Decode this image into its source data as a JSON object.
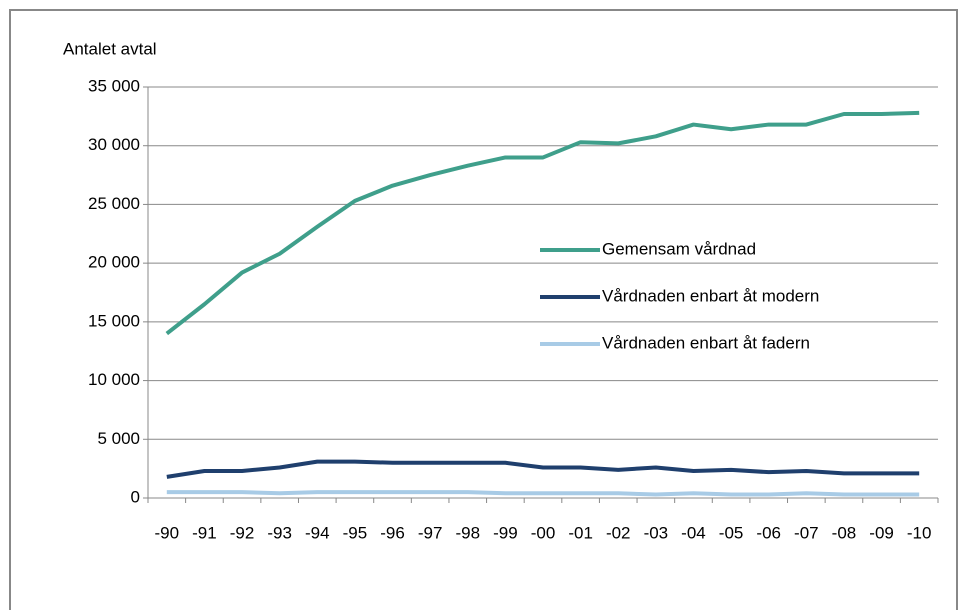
{
  "chart_data": {
    "type": "line",
    "ylabel": "Antalet avtal",
    "categories": [
      "-90",
      "-91",
      "-92",
      "-93",
      "-94",
      "-95",
      "-96",
      "-97",
      "-98",
      "-99",
      "-00",
      "-01",
      "-02",
      "-03",
      "-04",
      "-05",
      "-06",
      "-07",
      "-08",
      "-09",
      "-10"
    ],
    "series": [
      {
        "name": "Gemensam vårdnad",
        "color": "#3f9f8b",
        "values": [
          14000,
          16500,
          19200,
          20800,
          23100,
          25300,
          26600,
          27500,
          28300,
          29000,
          29000,
          30300,
          30200,
          30800,
          31800,
          31400,
          31800,
          31800,
          32700,
          32700,
          32800
        ]
      },
      {
        "name": "Vårdnaden enbart åt modern",
        "color": "#1f3f6d",
        "values": [
          1800,
          2300,
          2300,
          2600,
          3100,
          3100,
          3000,
          3000,
          3000,
          3000,
          2600,
          2600,
          2400,
          2600,
          2300,
          2400,
          2200,
          2300,
          2100,
          2100,
          2100
        ]
      },
      {
        "name": "Vårdnaden enbart åt fadern",
        "color": "#a8cbe6",
        "values": [
          500,
          500,
          500,
          400,
          500,
          500,
          500,
          500,
          500,
          400,
          400,
          400,
          400,
          300,
          400,
          300,
          300,
          400,
          300,
          300,
          300
        ]
      }
    ],
    "ylim": [
      0,
      35000
    ],
    "yticks": [
      0,
      {
        "value": 5000,
        "label": "5 000"
      },
      {
        "value": 10000,
        "label": "10 000"
      },
      {
        "value": 15000,
        "label": "15 000"
      },
      {
        "value": 20000,
        "label": "20 000"
      },
      {
        "value": 25000,
        "label": "25 000"
      },
      {
        "value": 30000,
        "label": "30 000"
      },
      {
        "value": 35000,
        "label": "35 000"
      }
    ],
    "grid": true,
    "legend": "right"
  }
}
